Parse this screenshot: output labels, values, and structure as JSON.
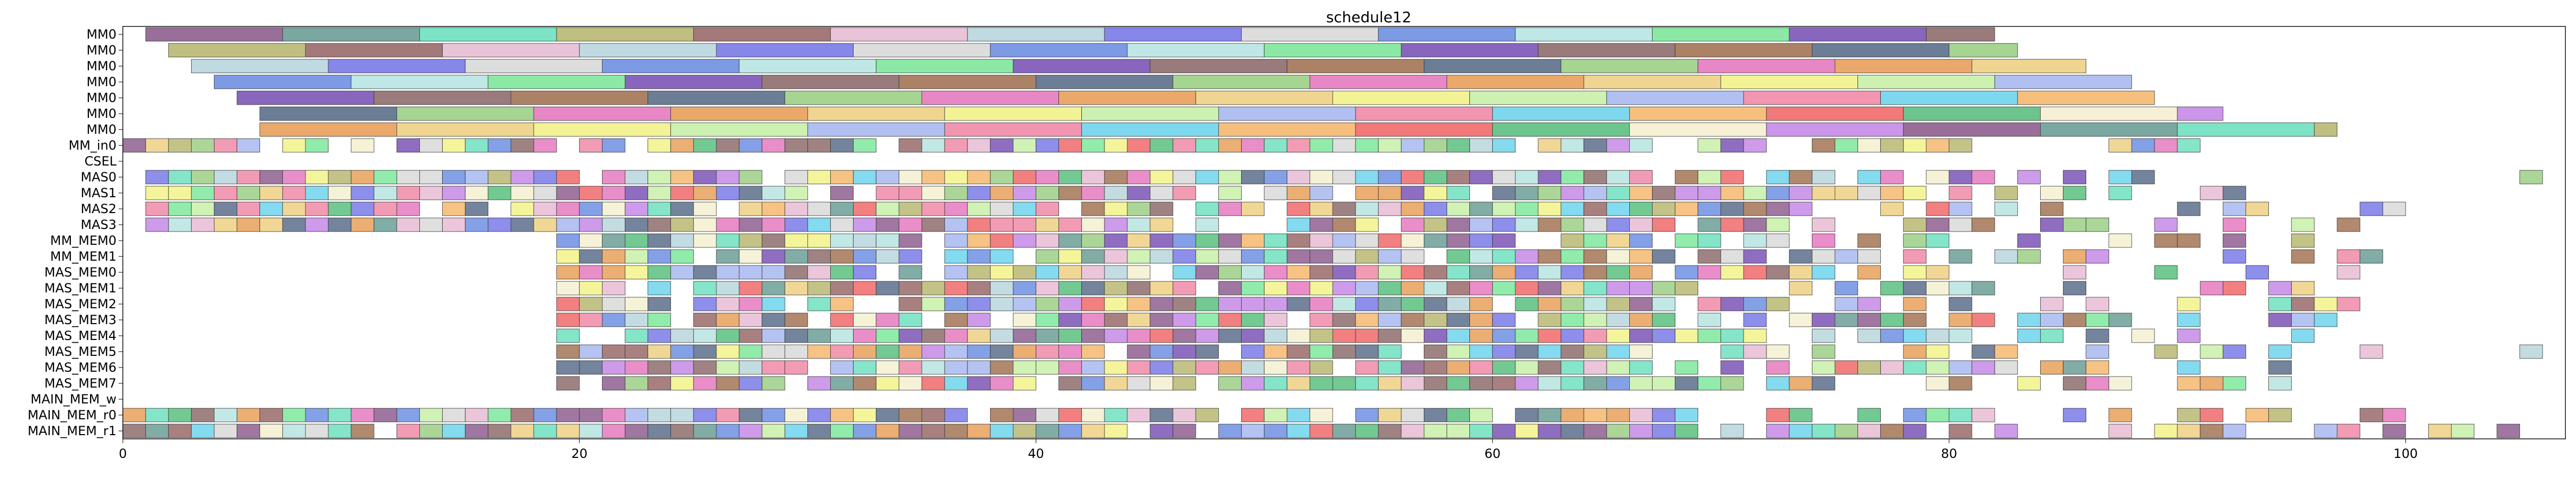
{
  "chart_data": {
    "type": "gantt",
    "title": "schedule12",
    "xlabel": "",
    "ylabel": "",
    "xlim": [
      0,
      107
    ],
    "xticks": [
      0,
      20,
      40,
      60,
      80,
      100
    ],
    "grid": false,
    "rows": [
      "MM0",
      "MM0",
      "MM0",
      "MM0",
      "MM0",
      "MM0",
      "MM0",
      "MM_in0",
      "CSEL",
      "MAS0",
      "MAS1",
      "MAS2",
      "MAS3",
      "MM_MEM0",
      "MM_MEM1",
      "MAS_MEM0",
      "MAS_MEM1",
      "MAS_MEM2",
      "MAS_MEM3",
      "MAS_MEM4",
      "MAS_MEM5",
      "MAS_MEM6",
      "MAS_MEM7",
      "MAIN_MEM_w",
      "MAIN_MEM_r0",
      "MAIN_MEM_r1"
    ],
    "long_tasks": [
      {
        "start": 1,
        "end": 82,
        "step": 6
      },
      {
        "start": 2,
        "end": 83,
        "step": 6
      },
      {
        "start": 3,
        "end": 86,
        "step": 6
      },
      {
        "start": 4,
        "end": 88,
        "step": 6
      },
      {
        "start": 5,
        "end": 89,
        "step": 6
      },
      {
        "start": 6,
        "end": 92,
        "step": 6
      },
      {
        "start": 6,
        "end": 97,
        "step": 6
      }
    ],
    "rows_end": {
      "MM_in0": 91,
      "CSEL": 0,
      "MAS0": 107,
      "MAS1": 97,
      "MAS2": 104,
      "MAS3": 99,
      "MM_MEM0": 99,
      "MM_MEM1": 99,
      "MAS_MEM0": 98,
      "MAS_MEM1": 99,
      "MAS_MEM2": 98,
      "MAS_MEM3": 97,
      "MAS_MEM4": 96,
      "MAS_MEM5": 106,
      "MAS_MEM6": 95,
      "MAS_MEM7": 97,
      "MAIN_MEM_w": 0,
      "MAIN_MEM_r0": 102,
      "MAIN_MEM_r1": 107
    },
    "colors": [
      "#8e5f8f",
      "#6c9e96",
      "#6fe0c0",
      "#b8b873",
      "#9a6a6a",
      "#e7bcd4",
      "#b8d6dd",
      "#7a7ae8",
      "#d9d9d9",
      "#6f8fe2",
      "#b7e4e2",
      "#7ee79b",
      "#7b55b7",
      "#8e6d6d",
      "#a37455",
      "#5c6f8b",
      "#9ccf85",
      "#e57abf",
      "#e8a05a",
      "#eed084",
      "#f2f28a",
      "#c8f0a8",
      "#a8b8f0",
      "#f08aa8",
      "#6fd4ec",
      "#f5b86f",
      "#f06a6a",
      "#5bbf7f",
      "#f5f0d0",
      "#c58ae8"
    ]
  }
}
